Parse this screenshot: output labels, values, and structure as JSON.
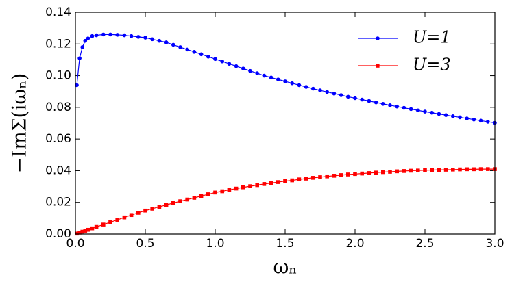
{
  "chart_data": {
    "type": "line",
    "xlabel": "ωₙ",
    "ylabel": "−ImΣ(iωₙ)",
    "x": [
      0.01,
      0.03,
      0.05,
      0.07,
      0.09,
      0.12,
      0.15,
      0.2,
      0.25,
      0.3,
      0.35,
      0.4,
      0.45,
      0.5,
      0.55,
      0.6,
      0.65,
      0.7,
      0.75,
      0.8,
      0.85,
      0.9,
      0.95,
      1.0,
      1.05,
      1.1,
      1.15,
      1.2,
      1.25,
      1.3,
      1.35,
      1.4,
      1.45,
      1.5,
      1.55,
      1.6,
      1.65,
      1.7,
      1.75,
      1.8,
      1.85,
      1.9,
      1.95,
      2.0,
      2.05,
      2.1,
      2.15,
      2.2,
      2.25,
      2.3,
      2.35,
      2.4,
      2.45,
      2.5,
      2.55,
      2.6,
      2.65,
      2.7,
      2.75,
      2.8,
      2.85,
      2.9,
      2.95,
      3.0
    ],
    "series": [
      {
        "name": "U=1",
        "color": "#0000ff",
        "marker": "circle",
        "values": [
          0.094,
          0.111,
          0.118,
          0.122,
          0.1235,
          0.125,
          0.1255,
          0.126,
          0.126,
          0.1258,
          0.1255,
          0.125,
          0.1245,
          0.124,
          0.123,
          0.122,
          0.121,
          0.1195,
          0.118,
          0.1165,
          0.115,
          0.1135,
          0.112,
          0.1105,
          0.109,
          0.1075,
          0.106,
          0.1045,
          0.103,
          0.1015,
          0.1,
          0.0988,
          0.0976,
          0.0964,
          0.0952,
          0.094,
          0.0929,
          0.0918,
          0.0907,
          0.0897,
          0.0887,
          0.0877,
          0.0867,
          0.0858,
          0.0849,
          0.084,
          0.0831,
          0.0822,
          0.0813,
          0.0805,
          0.0797,
          0.0789,
          0.0781,
          0.0773,
          0.0766,
          0.0758,
          0.0751,
          0.0744,
          0.0737,
          0.073,
          0.0723,
          0.0716,
          0.0709,
          0.0702
        ]
      },
      {
        "name": "U=3",
        "color": "#ff0000",
        "marker": "square",
        "values": [
          0.0003,
          0.0009,
          0.0015,
          0.0021,
          0.0027,
          0.0036,
          0.0045,
          0.006,
          0.0075,
          0.009,
          0.0105,
          0.012,
          0.0134,
          0.0148,
          0.016,
          0.0172,
          0.0184,
          0.0196,
          0.0207,
          0.0218,
          0.0229,
          0.024,
          0.0251,
          0.0262,
          0.027,
          0.0279,
          0.0287,
          0.0295,
          0.0302,
          0.0309,
          0.0316,
          0.0322,
          0.0328,
          0.0334,
          0.0339,
          0.0345,
          0.035,
          0.0355,
          0.0359,
          0.0364,
          0.0368,
          0.0372,
          0.0376,
          0.0379,
          0.0382,
          0.0385,
          0.0388,
          0.0391,
          0.0393,
          0.0396,
          0.0398,
          0.04,
          0.0401,
          0.0403,
          0.0404,
          0.0405,
          0.0406,
          0.0407,
          0.0408,
          0.0409,
          0.0409,
          0.041,
          0.041,
          0.041
        ]
      }
    ],
    "xlim": [
      0,
      3
    ],
    "ylim": [
      0,
      0.14
    ],
    "xticks": [
      {
        "value": 0,
        "label": "0.0"
      },
      {
        "value": 0.5,
        "label": "0.5"
      },
      {
        "value": 1,
        "label": "1.0"
      },
      {
        "value": 1.5,
        "label": "1.5"
      },
      {
        "value": 2,
        "label": "2.0"
      },
      {
        "value": 2.5,
        "label": "2.5"
      },
      {
        "value": 3,
        "label": "3.0"
      }
    ],
    "yticks": [
      {
        "value": 0,
        "label": "0.00"
      },
      {
        "value": 0.02,
        "label": "0.02"
      },
      {
        "value": 0.04,
        "label": "0.04"
      },
      {
        "value": 0.06,
        "label": "0.06"
      },
      {
        "value": 0.08,
        "label": "0.08"
      },
      {
        "value": 0.1,
        "label": "0.10"
      },
      {
        "value": 0.12,
        "label": "0.12"
      },
      {
        "value": 0.14,
        "label": "0.14"
      }
    ],
    "grid": false,
    "legend": "upper right"
  }
}
